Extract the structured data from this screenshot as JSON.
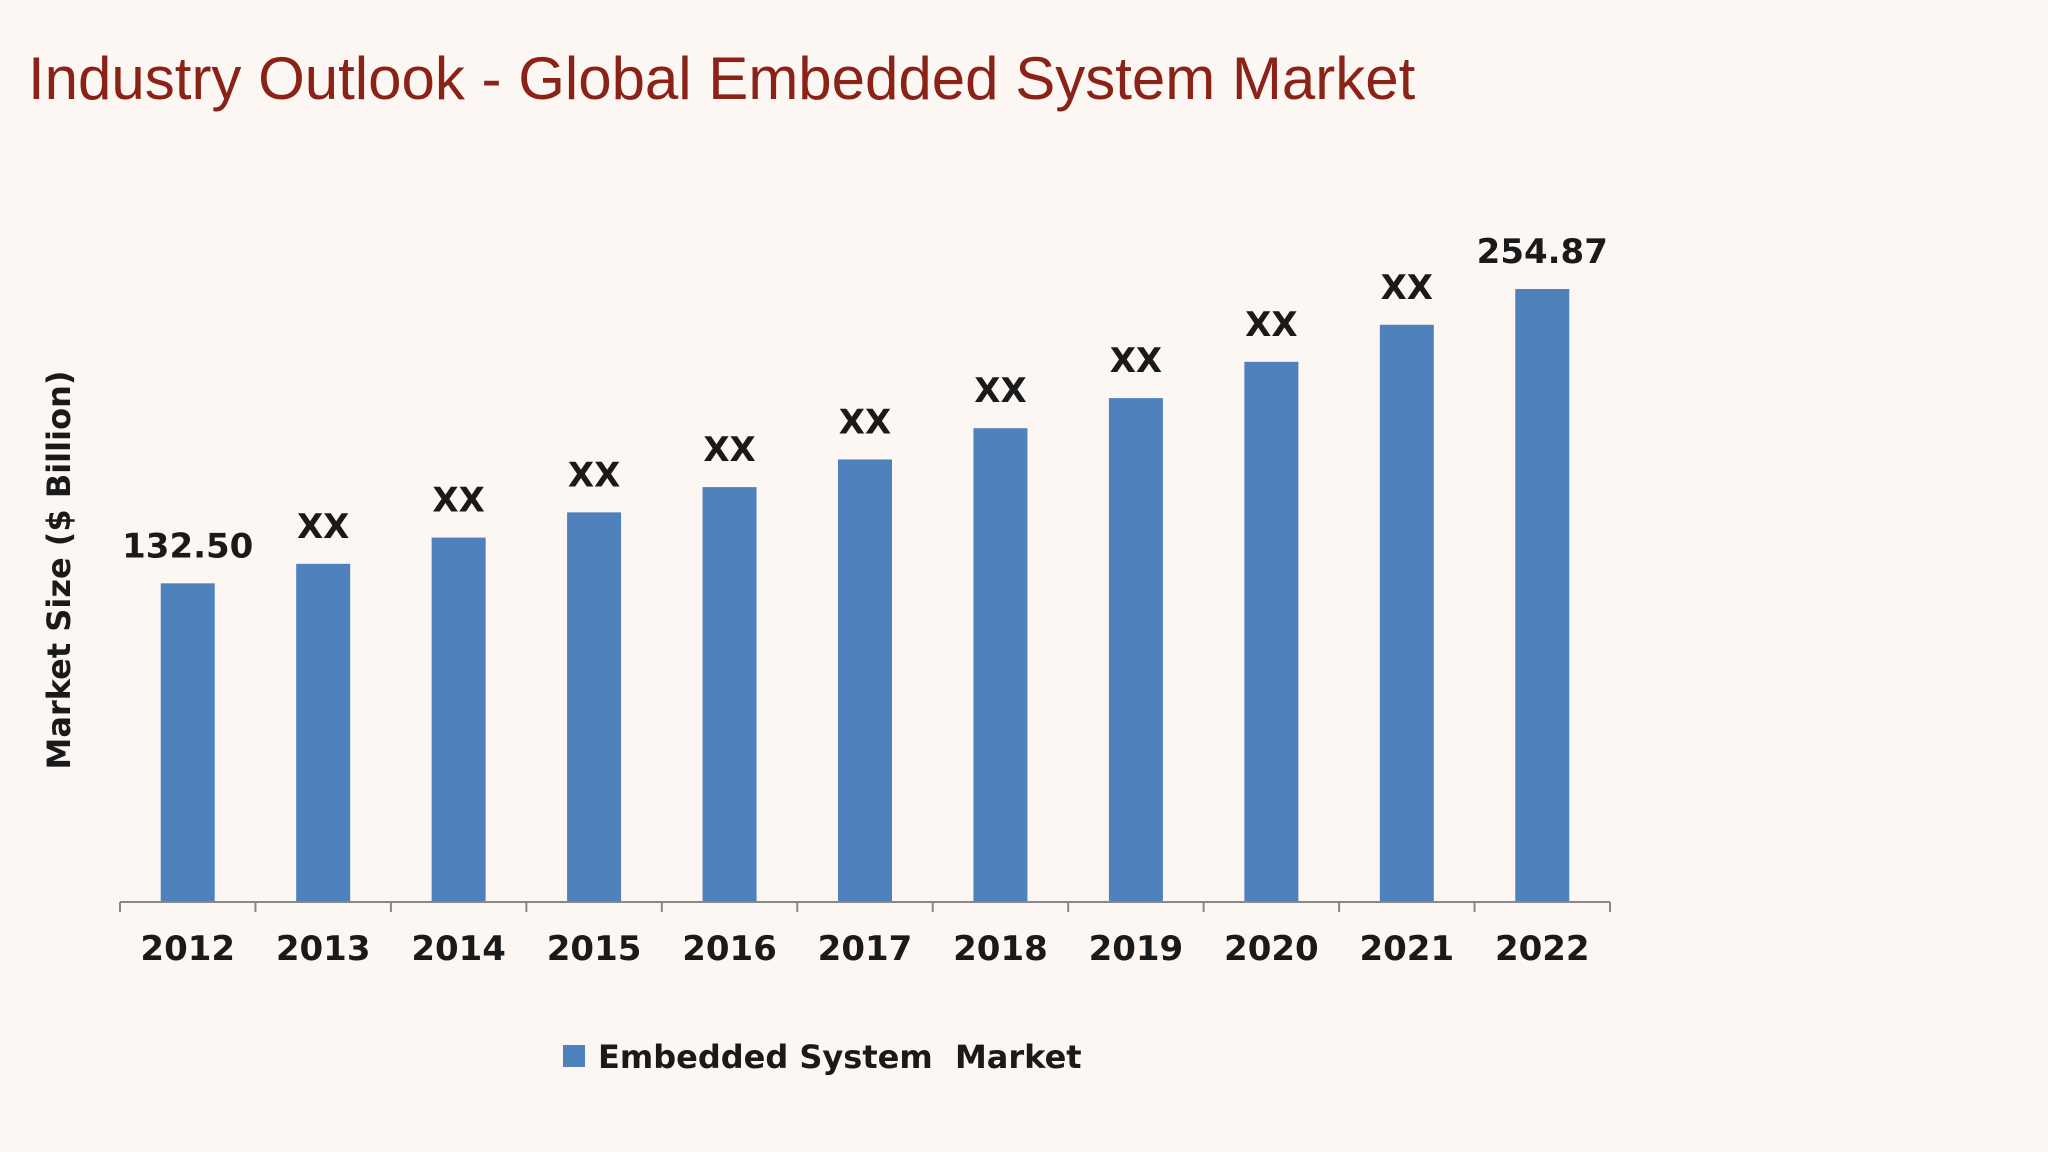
{
  "slide": {
    "title": "Industry Outlook - Global Embedded System Market"
  },
  "colors": {
    "title": "#8b2218",
    "background": "#fcf7f2",
    "bar": "#4f81bd",
    "axis": "#888888",
    "text": "#1a1a1a"
  },
  "chart_data": {
    "type": "bar",
    "title": "",
    "xlabel": "",
    "ylabel": "Market Size ($ Billion)",
    "categories": [
      "2012",
      "2013",
      "2014",
      "2015",
      "2016",
      "2017",
      "2018",
      "2019",
      "2020",
      "2021",
      "2022"
    ],
    "series": [
      {
        "name": "Embedded System  Market",
        "color": "#4f81bd",
        "values": [
          132.5,
          140.6,
          151.5,
          162.0,
          172.5,
          184.0,
          197.0,
          209.5,
          224.6,
          240.0,
          254.87
        ],
        "data_labels": [
          "132.50",
          "XX",
          "XX",
          "XX",
          "XX",
          "XX",
          "XX",
          "XX",
          "XX",
          "XX",
          "254.87"
        ]
      }
    ],
    "ylim": [
      0,
      260
    ],
    "y_axis_visible": false,
    "grid": false,
    "legend_position": "bottom"
  }
}
